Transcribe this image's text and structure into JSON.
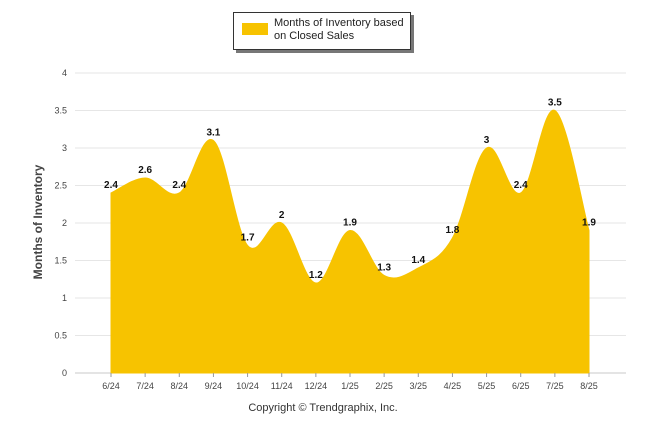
{
  "chart_data": {
    "type": "area",
    "categories": [
      "6/24",
      "7/24",
      "8/24",
      "9/24",
      "10/24",
      "11/24",
      "12/24",
      "1/25",
      "2/25",
      "3/25",
      "4/25",
      "5/25",
      "6/25",
      "7/25",
      "8/25"
    ],
    "series": [
      {
        "name": "Months of Inventory based on Closed Sales",
        "values": [
          2.4,
          2.6,
          2.4,
          3.1,
          1.7,
          2,
          1.2,
          1.9,
          1.3,
          1.4,
          1.8,
          3,
          2.4,
          3.5,
          1.9
        ]
      }
    ],
    "ylabel": "Months of Inventory",
    "xlabel": "",
    "ylim": [
      0,
      4
    ],
    "yticks": [
      "0",
      "0.5",
      "1",
      "1.5",
      "2",
      "2.5",
      "3",
      "3.5",
      "4"
    ],
    "grid": true,
    "legend_position": "top",
    "color": "#F7C300"
  },
  "legend": {
    "label": "Months of Inventory based on Closed Sales"
  },
  "footer": {
    "copyright": "Copyright © Trendgraphix, Inc."
  }
}
